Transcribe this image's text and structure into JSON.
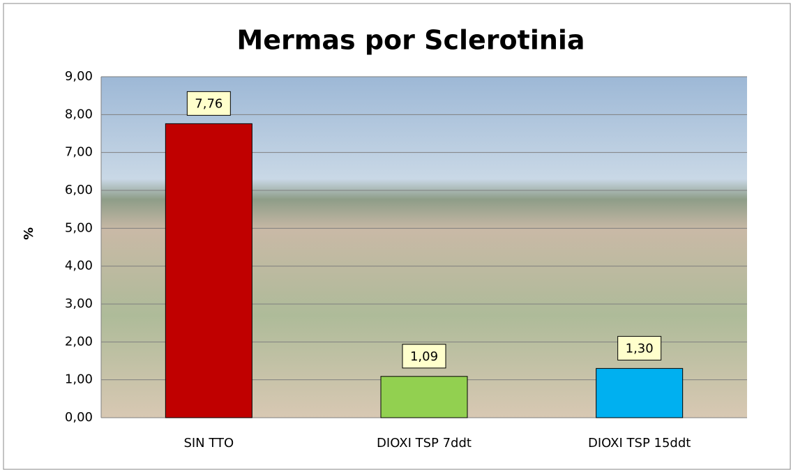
{
  "chart_data": {
    "type": "bar",
    "title": "Mermas por Sclerotinia",
    "y_label": "%",
    "categories": [
      "SIN TTO",
      "DIOXI TSP 7ddt",
      "DIOXI TSP 15ddt"
    ],
    "values": [
      7.76,
      1.09,
      1.3
    ],
    "value_labels": [
      "7,76",
      "1,09",
      "1,30"
    ],
    "colors": [
      "#c00000",
      "#92d050",
      "#00b0f0"
    ],
    "ylim": [
      0,
      9
    ],
    "yticks": [
      {
        "value": 0,
        "label": "0,00"
      },
      {
        "value": 1,
        "label": "1,00"
      },
      {
        "value": 2,
        "label": "2,00"
      },
      {
        "value": 3,
        "label": "3,00"
      },
      {
        "value": 4,
        "label": "4,00"
      },
      {
        "value": 5,
        "label": "5,00"
      },
      {
        "value": 6,
        "label": "6,00"
      },
      {
        "value": 7,
        "label": "7,00"
      },
      {
        "value": 8,
        "label": "8,00"
      },
      {
        "value": 9,
        "label": "9,00"
      }
    ],
    "grid": true
  }
}
